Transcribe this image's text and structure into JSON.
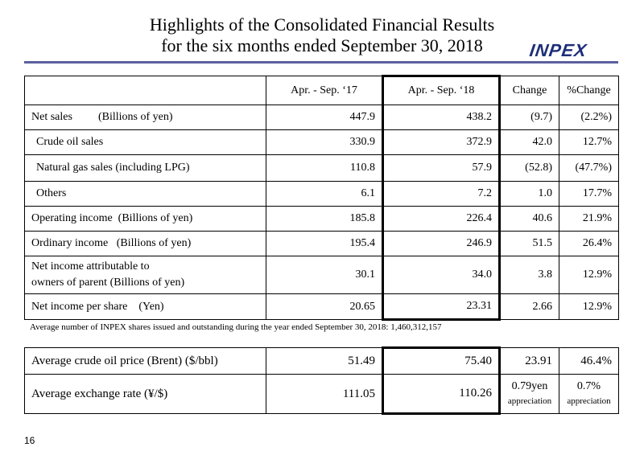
{
  "title": {
    "line1": "Highlights of the Consolidated Financial Results",
    "line2": "for the six months ended September 30, 2018"
  },
  "logo": "INPEX",
  "table": {
    "headers": [
      "Apr. - Sep. ‘17",
      "Apr. - Sep. ‘18",
      "Change",
      "%Change"
    ],
    "net_sales": {
      "label": "Net sales",
      "unit": "(Billions of yen)",
      "values": [
        "447.9",
        "438.2",
        "(9.7)",
        "(2.2%)"
      ]
    },
    "crude": {
      "label": "Crude oil sales",
      "values": [
        "330.9",
        "372.9",
        "42.0",
        "12.7%"
      ]
    },
    "gas": {
      "label": "Natural gas sales  (including LPG)",
      "values": [
        "110.8",
        "57.9",
        "(52.8)",
        "(47.7%)"
      ]
    },
    "others": {
      "label": "Others",
      "values": [
        "6.1",
        "7.2",
        "1.0",
        "17.7%"
      ]
    },
    "operating": {
      "label": "Operating income  (Billions of yen)",
      "values": [
        "185.8",
        "226.4",
        "40.6",
        "21.9%"
      ]
    },
    "ordinary": {
      "label": "Ordinary income   (Billions of yen)",
      "values": [
        "195.4",
        "246.9",
        "51.5",
        "26.4%"
      ]
    },
    "net_income": {
      "label1": "Net income attributable to",
      "label2": "owners of parent (Billions of yen)",
      "values": [
        "30.1",
        "34.0",
        "3.8",
        "12.9%"
      ]
    },
    "eps": {
      "label": "Net income per share    (Yen)",
      "values": [
        "20.65",
        "23.31",
        "2.66",
        "12.9%"
      ]
    }
  },
  "note": "Average number of INPEX shares issued and outstanding during the year ended September 30, 2018: 1,460,312,157",
  "table2": {
    "oil": {
      "label": "Average crude oil price (Brent) ($/bbl)",
      "values": [
        "51.49",
        "75.40",
        "23.91",
        "46.4%"
      ]
    },
    "fx": {
      "label": "Average exchange rate (¥/$)",
      "values": [
        "111.05",
        "110.26"
      ],
      "change": "0.79yen",
      "pct": "0.7%",
      "change_sub": "appreciation",
      "pct_sub": "appreciation"
    }
  },
  "page_number": "16"
}
